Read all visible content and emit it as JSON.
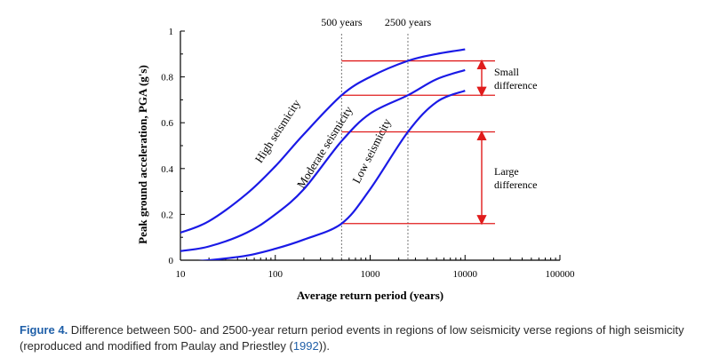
{
  "chart_data": {
    "type": "line",
    "xlabel": "Average return period (years)",
    "ylabel": "Peak ground acceleration, PGA (g's)",
    "xscale": "log",
    "xlim": [
      10,
      100000
    ],
    "ylim": [
      0,
      1
    ],
    "x_ticks": [
      "10",
      "100",
      "1000",
      "10000",
      "100000"
    ],
    "y_ticks": [
      "0",
      "0.2",
      "0.4",
      "0.6",
      "0.8",
      "1"
    ],
    "series": [
      {
        "name": "High seismicity",
        "x": [
          10,
          20,
          50,
          100,
          200,
          500,
          1000,
          2500,
          5000,
          10000
        ],
        "y": [
          0.12,
          0.17,
          0.29,
          0.41,
          0.55,
          0.72,
          0.8,
          0.87,
          0.9,
          0.92
        ]
      },
      {
        "name": "Moderate seismicity",
        "x": [
          10,
          20,
          50,
          100,
          200,
          500,
          1000,
          2500,
          5000,
          10000
        ],
        "y": [
          0.04,
          0.06,
          0.12,
          0.2,
          0.31,
          0.52,
          0.64,
          0.72,
          0.79,
          0.83
        ]
      },
      {
        "name": "Low seismicity",
        "x": [
          10,
          20,
          50,
          100,
          200,
          500,
          1000,
          2500,
          5000,
          10000
        ],
        "y": [
          -0.01,
          0.0,
          0.02,
          0.05,
          0.09,
          0.16,
          0.31,
          0.56,
          0.69,
          0.74
        ]
      }
    ],
    "vlines": [
      {
        "x": 500,
        "label": "500 years"
      },
      {
        "x": 2500,
        "label": "2500 years"
      }
    ],
    "hlines": [
      0.87,
      0.72,
      0.56,
      0.16
    ],
    "annotations": [
      {
        "text": [
          "Small",
          "difference"
        ],
        "from": 0.72,
        "to": 0.87
      },
      {
        "text": [
          "Large",
          "difference"
        ],
        "from": 0.16,
        "to": 0.56
      }
    ],
    "colors": {
      "curve": "#1a1ae6",
      "marker": "#e01b1b",
      "axis": "#000000",
      "guide": "#777777"
    }
  },
  "caption": {
    "label": "Figure 4.",
    "text": " Difference between 500- and 2500-year return period events in regions of low seismicity verse regions of high seismicity (reproduced and modified from Paulay and Priestley (",
    "ref": "1992",
    "end": "))."
  }
}
